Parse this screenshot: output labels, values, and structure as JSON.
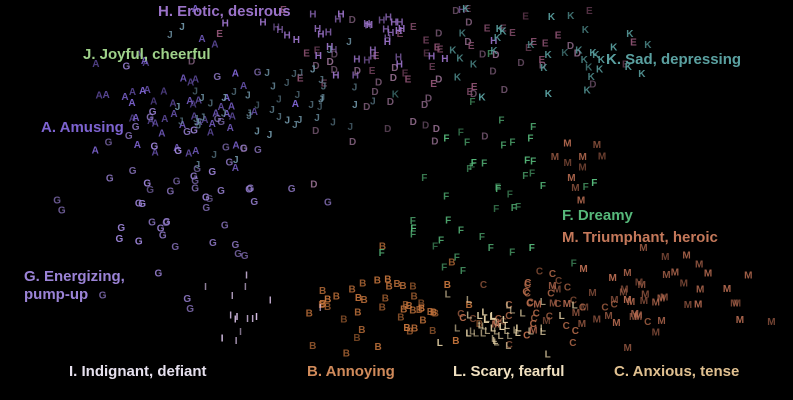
{
  "chart_data": {
    "type": "scatter",
    "title": "",
    "xlabel": "",
    "ylabel": "",
    "marker": "letter",
    "xlim": [
      0,
      100
    ],
    "ylim": [
      0,
      100
    ],
    "categories": [
      {
        "code": "A",
        "name": "A. Amusing",
        "color": "#7d63d0",
        "clusters": [
          {
            "center": [
              22,
              72
            ],
            "spread": [
              6,
              8
            ],
            "count": 55
          }
        ]
      },
      {
        "code": "B",
        "name": "B. Annoying",
        "color": "#c4743c",
        "clusters": [
          {
            "center": [
              48,
              22
            ],
            "spread": [
              5,
              6
            ],
            "count": 50
          }
        ]
      },
      {
        "code": "C",
        "name": "C. Anxious, tense",
        "color": "#b46a4a",
        "clusters": [
          {
            "center": [
              68,
              22
            ],
            "spread": [
              5,
              5
            ],
            "count": 35
          }
        ]
      },
      {
        "code": "D",
        "name": "",
        "color": "#8f6a8a",
        "clusters": [
          {
            "center": [
              50,
              78
            ],
            "spread": [
              10,
              10
            ],
            "count": 40
          }
        ]
      },
      {
        "code": "E",
        "name": "",
        "color": "#8a5070",
        "clusters": [
          {
            "center": [
              55,
              88
            ],
            "spread": [
              12,
              6
            ],
            "count": 35
          }
        ]
      },
      {
        "code": "F",
        "name": "F. Dreamy",
        "color": "#56b87a",
        "clusters": [
          {
            "center": [
              60,
              50
            ],
            "spread": [
              6,
              12
            ],
            "count": 45
          }
        ]
      },
      {
        "code": "G",
        "name": "G. Energizing,\npump-up",
        "color": "#9b83d6",
        "clusters": [
          {
            "center": [
              24,
              50
            ],
            "spread": [
              7,
              12
            ],
            "count": 60
          }
        ]
      },
      {
        "code": "H",
        "name": "H. Erotic, desirous",
        "color": "#9a72c8",
        "clusters": [
          {
            "center": [
              44,
              91
            ],
            "spread": [
              6,
              5
            ],
            "count": 45
          }
        ]
      },
      {
        "code": "I",
        "name": "I. Indignant, defiant",
        "color": "#d8c0e8",
        "clusters": [
          {
            "center": [
              30,
              20
            ],
            "spread": [
              3,
              4
            ],
            "count": 15
          }
        ]
      },
      {
        "code": "J",
        "name": "J. Joyful, cheerful",
        "color": "#6b8fa0",
        "clusters": [
          {
            "center": [
              33,
              75
            ],
            "spread": [
              7,
              7
            ],
            "count": 50
          }
        ]
      },
      {
        "code": "K",
        "name": "K. Sad, depressing",
        "color": "#5aa0a0",
        "clusters": [
          {
            "center": [
              68,
              85
            ],
            "spread": [
              7,
              8
            ],
            "count": 35
          }
        ]
      },
      {
        "code": "L",
        "name": "L. Scary, fearful",
        "color": "#e8d4a8",
        "clusters": [
          {
            "center": [
              62,
              17
            ],
            "spread": [
              4,
              3
            ],
            "count": 45
          }
        ]
      },
      {
        "code": "M",
        "name": "M. Triumphant, heroic",
        "color": "#b46a50",
        "clusters": [
          {
            "center": [
              80,
              25
            ],
            "spread": [
              6,
              6
            ],
            "count": 55
          },
          {
            "center": [
              72,
              57
            ],
            "spread": [
              2,
              4
            ],
            "count": 10
          }
        ]
      }
    ]
  }
}
